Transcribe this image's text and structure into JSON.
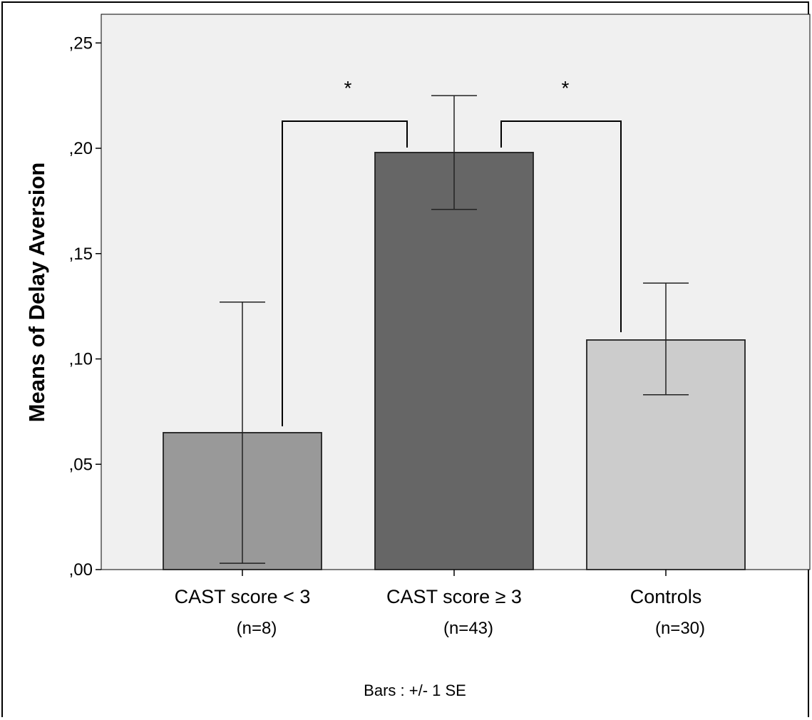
{
  "chart_data": {
    "type": "bar",
    "categories": [
      "CAST score < 3",
      "CAST score ≥ 3",
      "Controls"
    ],
    "sample_sizes": [
      "(n=8)",
      "(n=43)",
      "(n=30)"
    ],
    "values": [
      0.065,
      0.198,
      0.109
    ],
    "error_low": [
      0.003,
      0.171,
      0.083
    ],
    "error_high": [
      0.127,
      0.225,
      0.136
    ],
    "bar_colors": [
      "#999999",
      "#666666",
      "#cccccc"
    ],
    "plot_background": "#f0f0f0",
    "ylabel": "Means of Delay Aversion",
    "ylim": [
      0,
      0.26
    ],
    "yticks": [
      ",00",
      ",05",
      ",10",
      ",15",
      ",20",
      ",25"
    ],
    "ytick_values": [
      0,
      0.05,
      0.1,
      0.15,
      0.2,
      0.25
    ],
    "footnote": "Bars :  +/- 1 SE",
    "significance": [
      {
        "from": 0,
        "to": 1,
        "label": "*"
      },
      {
        "from": 1,
        "to": 2,
        "label": "*"
      }
    ],
    "grid": false,
    "legend": "none"
  }
}
